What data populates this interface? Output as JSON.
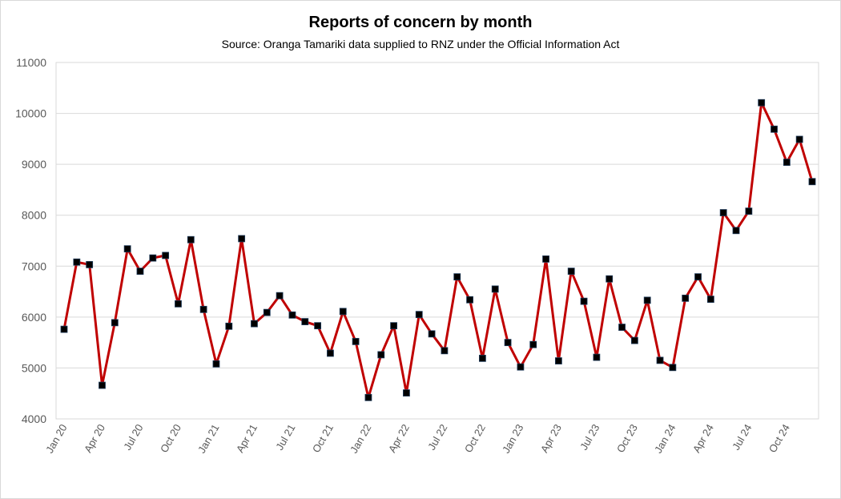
{
  "chart_data": {
    "type": "line",
    "title": "Reports of concern by month",
    "subtitle": "Source: Oranga Tamariki data supplied to RNZ under the Official Information Act",
    "xlabel": "",
    "ylabel": "",
    "ylim": [
      4000,
      11000
    ],
    "yticks": [
      4000,
      5000,
      6000,
      7000,
      8000,
      9000,
      10000,
      11000
    ],
    "grid": true,
    "x_tick_labels": [
      "Jan 20",
      "Apr 20",
      "Jul 20",
      "Oct 20",
      "Jan 21",
      "Apr 21",
      "Jul 21",
      "Oct 21",
      "Jan 22",
      "Apr 22",
      "Jul 22",
      "Oct 22",
      "Jan 23",
      "Apr 23",
      "Jul 23",
      "Oct 23",
      "Jan 24",
      "Apr 24",
      "Jul 24",
      "Oct 24"
    ],
    "x_tick_step": 3,
    "series": [
      {
        "name": "Reports of concern",
        "color": "#c00000",
        "marker_color": "#000000",
        "values": [
          5760,
          7080,
          7030,
          4660,
          5890,
          7340,
          6900,
          7160,
          7210,
          6260,
          7520,
          6150,
          5080,
          5820,
          7540,
          5870,
          6090,
          6420,
          6040,
          5910,
          5830,
          5290,
          6110,
          5520,
          4420,
          5260,
          5830,
          4510,
          6050,
          5670,
          5340,
          6790,
          6340,
          5190,
          6550,
          5500,
          5020,
          5460,
          7140,
          5140,
          6900,
          6310,
          5210,
          6750,
          5800,
          5540,
          6330,
          5150,
          5010,
          6370,
          6790,
          6350,
          8050,
          7700,
          8080,
          10210,
          9690,
          9040,
          9490,
          8660
        ]
      }
    ]
  }
}
